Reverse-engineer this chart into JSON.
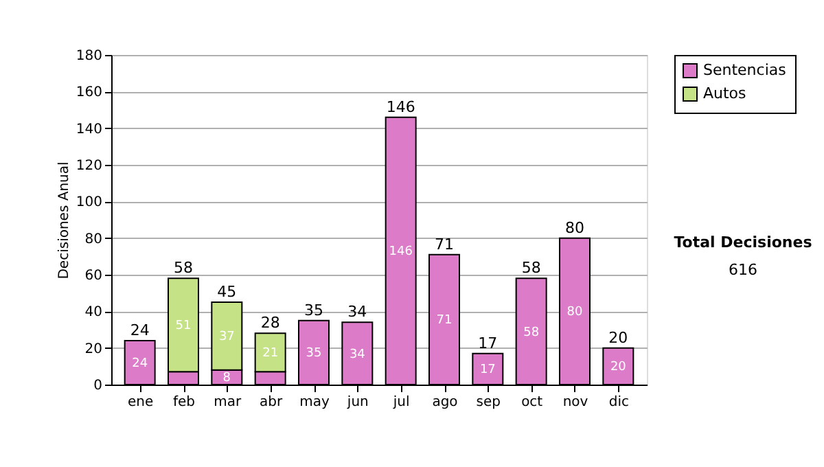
{
  "chart_data": {
    "type": "bar",
    "stacked": true,
    "ylabel": "Decisiones Anual",
    "categories": [
      "ene",
      "feb",
      "mar",
      "abr",
      "may",
      "jun",
      "jul",
      "ago",
      "sep",
      "oct",
      "nov",
      "dic"
    ],
    "series": [
      {
        "name": "Sentencias",
        "color": "#dc7cc8",
        "values": [
          24,
          7,
          8,
          7,
          35,
          34,
          146,
          71,
          17,
          58,
          80,
          20
        ],
        "value_labels": [
          "24",
          null,
          "8",
          null,
          "35",
          "34",
          "146",
          "71",
          "17",
          "58",
          "80",
          "20"
        ]
      },
      {
        "name": "Autos",
        "color": "#c6e287",
        "values": [
          null,
          51,
          37,
          21,
          null,
          null,
          null,
          null,
          null,
          null,
          null,
          null
        ],
        "value_labels": [
          null,
          "51",
          "37",
          "21",
          null,
          null,
          null,
          null,
          null,
          null,
          null,
          null
        ]
      }
    ],
    "totals": [
      "24",
      "58",
      "45",
      "28",
      "35",
      "34",
      "146",
      "71",
      "17",
      "58",
      "80",
      "20"
    ],
    "ylim": [
      0,
      180
    ],
    "yticks": [
      0,
      20,
      40,
      60,
      80,
      100,
      120,
      140,
      160,
      180
    ],
    "grid": "y",
    "legend": "right",
    "annotations": [
      "Total Decisiones",
      "616"
    ]
  }
}
